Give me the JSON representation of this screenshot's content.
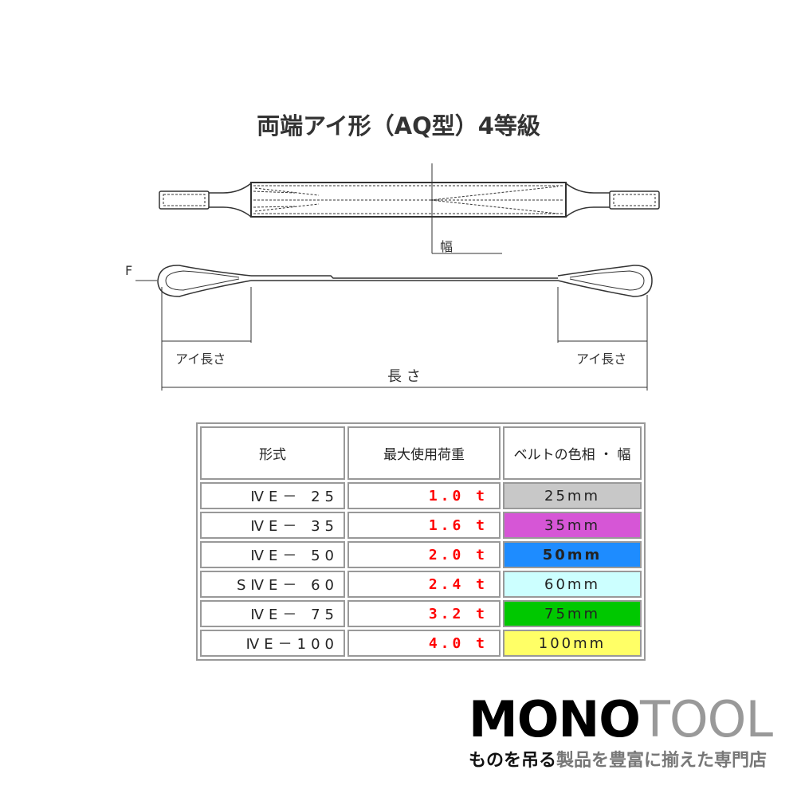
{
  "title": "両端アイ形（AQ型）4等級",
  "diagram": {
    "width_label": "幅",
    "f_label": "F",
    "eye_length_label": "アイ長さ",
    "length_label": "長 さ"
  },
  "table": {
    "headers": [
      "形式",
      "最大使用荷重",
      "ベルトの色相 ・ 幅"
    ],
    "rows": [
      {
        "model": "ⅣE－ 25",
        "load": "1.0 t",
        "belt": "25mm",
        "color": "#c8c8c8"
      },
      {
        "model": "ⅣE－ 35",
        "load": "1.6 t",
        "belt": "35mm",
        "color": "#d656d6"
      },
      {
        "model": "ⅣE－ 50",
        "load": "2.0 t",
        "belt": "50mm",
        "color": "#1e8cff"
      },
      {
        "model": "SⅣE－ 60",
        "load": "2.4 t",
        "belt": "60mm",
        "color": "#ccffff"
      },
      {
        "model": "ⅣE－ 75",
        "load": "3.2 t",
        "belt": "75mm",
        "color": "#00c800"
      },
      {
        "model": "ⅣE－100",
        "load": "4.0 t",
        "belt": "100mm",
        "color": "#ffff66"
      }
    ]
  },
  "logo": {
    "mono": "MONO",
    "tool": "TOOL",
    "tagline_bold": "ものを吊る",
    "tagline": "製品を豊富に揃えた専門店"
  }
}
